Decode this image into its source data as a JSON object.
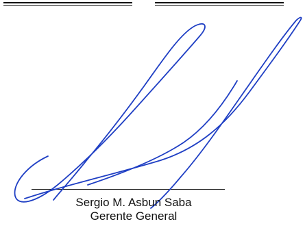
{
  "signature_block": {
    "name": "Sergio M. Asbun Saba",
    "title": "Gerente General"
  },
  "colors": {
    "ink": "#1f3fc4",
    "rule": "#111111"
  },
  "icons": {
    "signature": "handwritten-signature-icon"
  }
}
